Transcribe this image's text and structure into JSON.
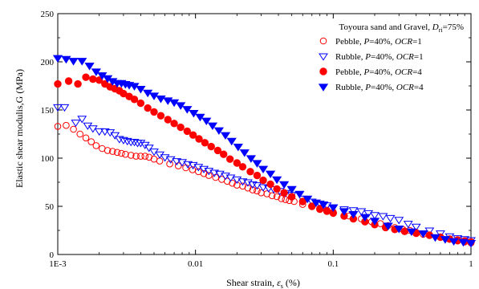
{
  "chart_data": {
    "type": "scatter",
    "title": "",
    "xlabel": "Shear strain, ε_s (%)",
    "xlabel_text": "Shear strain, ",
    "xlabel_symbol": "ε",
    "xlabel_sub": "s",
    "xlabel_unit": " (%)",
    "ylabel": "Elastic shear modulis,G (MPa)",
    "xscale": "log",
    "xlim": [
      0.001,
      1
    ],
    "ylim": [
      0,
      250
    ],
    "xticks": [
      {
        "value": 0.001,
        "label": "1E-3"
      },
      {
        "value": 0.01,
        "label": "0.01"
      },
      {
        "value": 0.1,
        "label": "0.1"
      },
      {
        "value": 1,
        "label": "1"
      }
    ],
    "yticks": [
      0,
      50,
      100,
      150,
      200,
      250
    ],
    "grid": false,
    "legend_title": {
      "prefix": "Toyoura sand and Gravel, ",
      "var": "D",
      "sub": "ri",
      "suffix": "=75%"
    },
    "legend_position": "top-right",
    "series": [
      {
        "name": "Pebble, P=40%, OCR=1",
        "legend": {
          "prefix": "Pebble, ",
          "p": "P",
          "pval": "=40%, ",
          "ocr": "OCR",
          "ocrval": "=1"
        },
        "marker": "circle-open",
        "color": "#ff0000",
        "x": [
          0.001,
          0.00115,
          0.0013,
          0.00145,
          0.0016,
          0.00175,
          0.0019,
          0.0021,
          0.0023,
          0.0025,
          0.0027,
          0.0029,
          0.0031,
          0.0034,
          0.0037,
          0.004,
          0.0043,
          0.0046,
          0.005,
          0.0055,
          0.0065,
          0.0075,
          0.0085,
          0.0095,
          0.0105,
          0.0115,
          0.0125,
          0.014,
          0.0155,
          0.017,
          0.0185,
          0.02,
          0.022,
          0.024,
          0.026,
          0.028,
          0.03,
          0.033,
          0.036,
          0.039,
          0.042,
          0.045,
          0.048,
          0.052,
          0.06,
          0.07,
          0.08,
          0.09,
          0.1,
          0.13,
          0.16,
          0.19,
          0.22,
          0.25,
          0.28,
          0.32,
          0.36,
          0.4,
          0.45,
          0.5,
          0.6,
          0.7,
          0.8,
          0.9,
          1.0
        ],
        "y": [
          133,
          134,
          130,
          125,
          121,
          117,
          113,
          110,
          108,
          107,
          106,
          105,
          104,
          103,
          102,
          102,
          102,
          101,
          99,
          97,
          94,
          92,
          90,
          88,
          86,
          84,
          82,
          80,
          78,
          76,
          74,
          72,
          71,
          69,
          67,
          66,
          64,
          63,
          61,
          60,
          58,
          57,
          56,
          55,
          52,
          50,
          48,
          46,
          44,
          40,
          37,
          34,
          32,
          30,
          28,
          26,
          25,
          23,
          21,
          20,
          18,
          16,
          14,
          13,
          12
        ]
      },
      {
        "name": "Rubble, P=40%, OCR=1",
        "legend": {
          "prefix": "Rubble, ",
          "p": "P",
          "pval": "=40%, ",
          "ocr": "OCR",
          "ocrval": "=1"
        },
        "marker": "triangle-down-open",
        "color": "#0000ff",
        "x": [
          0.001,
          0.00112,
          0.00135,
          0.0015,
          0.00165,
          0.0018,
          0.002,
          0.0022,
          0.0024,
          0.0026,
          0.0028,
          0.003,
          0.0032,
          0.0034,
          0.0036,
          0.0038,
          0.004,
          0.0043,
          0.0046,
          0.005,
          0.0055,
          0.006,
          0.0066,
          0.0073,
          0.008,
          0.0088,
          0.0096,
          0.0105,
          0.0115,
          0.0125,
          0.0137,
          0.015,
          0.0165,
          0.018,
          0.02,
          0.022,
          0.024,
          0.026,
          0.028,
          0.031,
          0.034,
          0.037,
          0.041,
          0.045,
          0.05,
          0.06,
          0.07,
          0.08,
          0.09,
          0.1,
          0.12,
          0.14,
          0.16,
          0.18,
          0.2,
          0.23,
          0.26,
          0.3,
          0.35,
          0.4,
          0.5,
          0.6,
          0.7,
          0.8,
          0.9,
          1.0
        ],
        "y": [
          153,
          153,
          137,
          141,
          134,
          131,
          128,
          128,
          127,
          124,
          120,
          119,
          118,
          117,
          117,
          116,
          116,
          114,
          111,
          107,
          104,
          101,
          99,
          97,
          96,
          94,
          93,
          91,
          89,
          87,
          85,
          84,
          82,
          80,
          78,
          76,
          75,
          73,
          72,
          70,
          69,
          68,
          66,
          64,
          62,
          58,
          55,
          53,
          51,
          49,
          47,
          46,
          45,
          43,
          41,
          40,
          38,
          36,
          32,
          29,
          25,
          22,
          19,
          17,
          16,
          15
        ]
      },
      {
        "name": "Pebble, P=40%, OCR=4",
        "legend": {
          "prefix": "Pebble, ",
          "p": "P",
          "pval": "=40%, ",
          "ocr": "OCR",
          "ocrval": "=4"
        },
        "marker": "circle-filled",
        "color": "#ff0000",
        "x": [
          0.001,
          0.0012,
          0.0014,
          0.0016,
          0.0018,
          0.002,
          0.0022,
          0.0024,
          0.0026,
          0.0028,
          0.003,
          0.0033,
          0.0036,
          0.004,
          0.0045,
          0.005,
          0.0056,
          0.0063,
          0.007,
          0.0078,
          0.0087,
          0.0096,
          0.0106,
          0.0117,
          0.013,
          0.0145,
          0.016,
          0.0178,
          0.02,
          0.022,
          0.025,
          0.028,
          0.031,
          0.035,
          0.039,
          0.044,
          0.05,
          0.06,
          0.07,
          0.08,
          0.09,
          0.1,
          0.12,
          0.14,
          0.17,
          0.2,
          0.24,
          0.28,
          0.33,
          0.4,
          0.5,
          0.6,
          0.7,
          0.8,
          0.9,
          1.0
        ],
        "y": [
          177,
          180,
          177,
          184,
          182,
          181,
          177,
          174,
          172,
          170,
          167,
          164,
          161,
          157,
          152,
          148,
          144,
          140,
          136,
          132,
          128,
          124,
          120,
          116,
          112,
          108,
          104,
          99,
          95,
          91,
          86,
          82,
          77,
          73,
          68,
          64,
          60,
          55,
          50,
          47,
          45,
          43,
          40,
          37,
          34,
          31,
          28,
          26,
          24,
          22,
          20,
          18,
          16,
          15,
          14,
          13
        ]
      },
      {
        "name": "Rubble, P=40%, OCR=4",
        "legend": {
          "prefix": "Rubble, ",
          "p": "P",
          "pval": "=40%, ",
          "ocr": "OCR",
          "ocrval": "=4"
        },
        "marker": "triangle-down-filled",
        "color": "#0000ff",
        "x": [
          0.001,
          0.00115,
          0.0013,
          0.0015,
          0.0017,
          0.0019,
          0.0021,
          0.0023,
          0.0025,
          0.0027,
          0.0029,
          0.0031,
          0.0033,
          0.0036,
          0.004,
          0.0045,
          0.005,
          0.0056,
          0.0063,
          0.007,
          0.0078,
          0.0087,
          0.0097,
          0.0108,
          0.012,
          0.0133,
          0.0148,
          0.0165,
          0.0183,
          0.0204,
          0.0227,
          0.0253,
          0.028,
          0.031,
          0.035,
          0.039,
          0.044,
          0.05,
          0.057,
          0.065,
          0.075,
          0.085,
          0.1,
          0.12,
          0.14,
          0.17,
          0.2,
          0.25,
          0.3,
          0.37,
          0.45,
          0.55,
          0.65,
          0.75,
          0.88,
          1.0
        ],
        "y": [
          204,
          203,
          201,
          201,
          196,
          190,
          186,
          183,
          180,
          178,
          178,
          177,
          176,
          175,
          172,
          168,
          165,
          162,
          160,
          158,
          155,
          151,
          147,
          143,
          139,
          134,
          129,
          124,
          118,
          112,
          106,
          100,
          95,
          89,
          84,
          78,
          73,
          68,
          63,
          58,
          54,
          52,
          49,
          45,
          42,
          39,
          35,
          30,
          27,
          24,
          22,
          18,
          16,
          14,
          13,
          12
        ]
      }
    ]
  }
}
